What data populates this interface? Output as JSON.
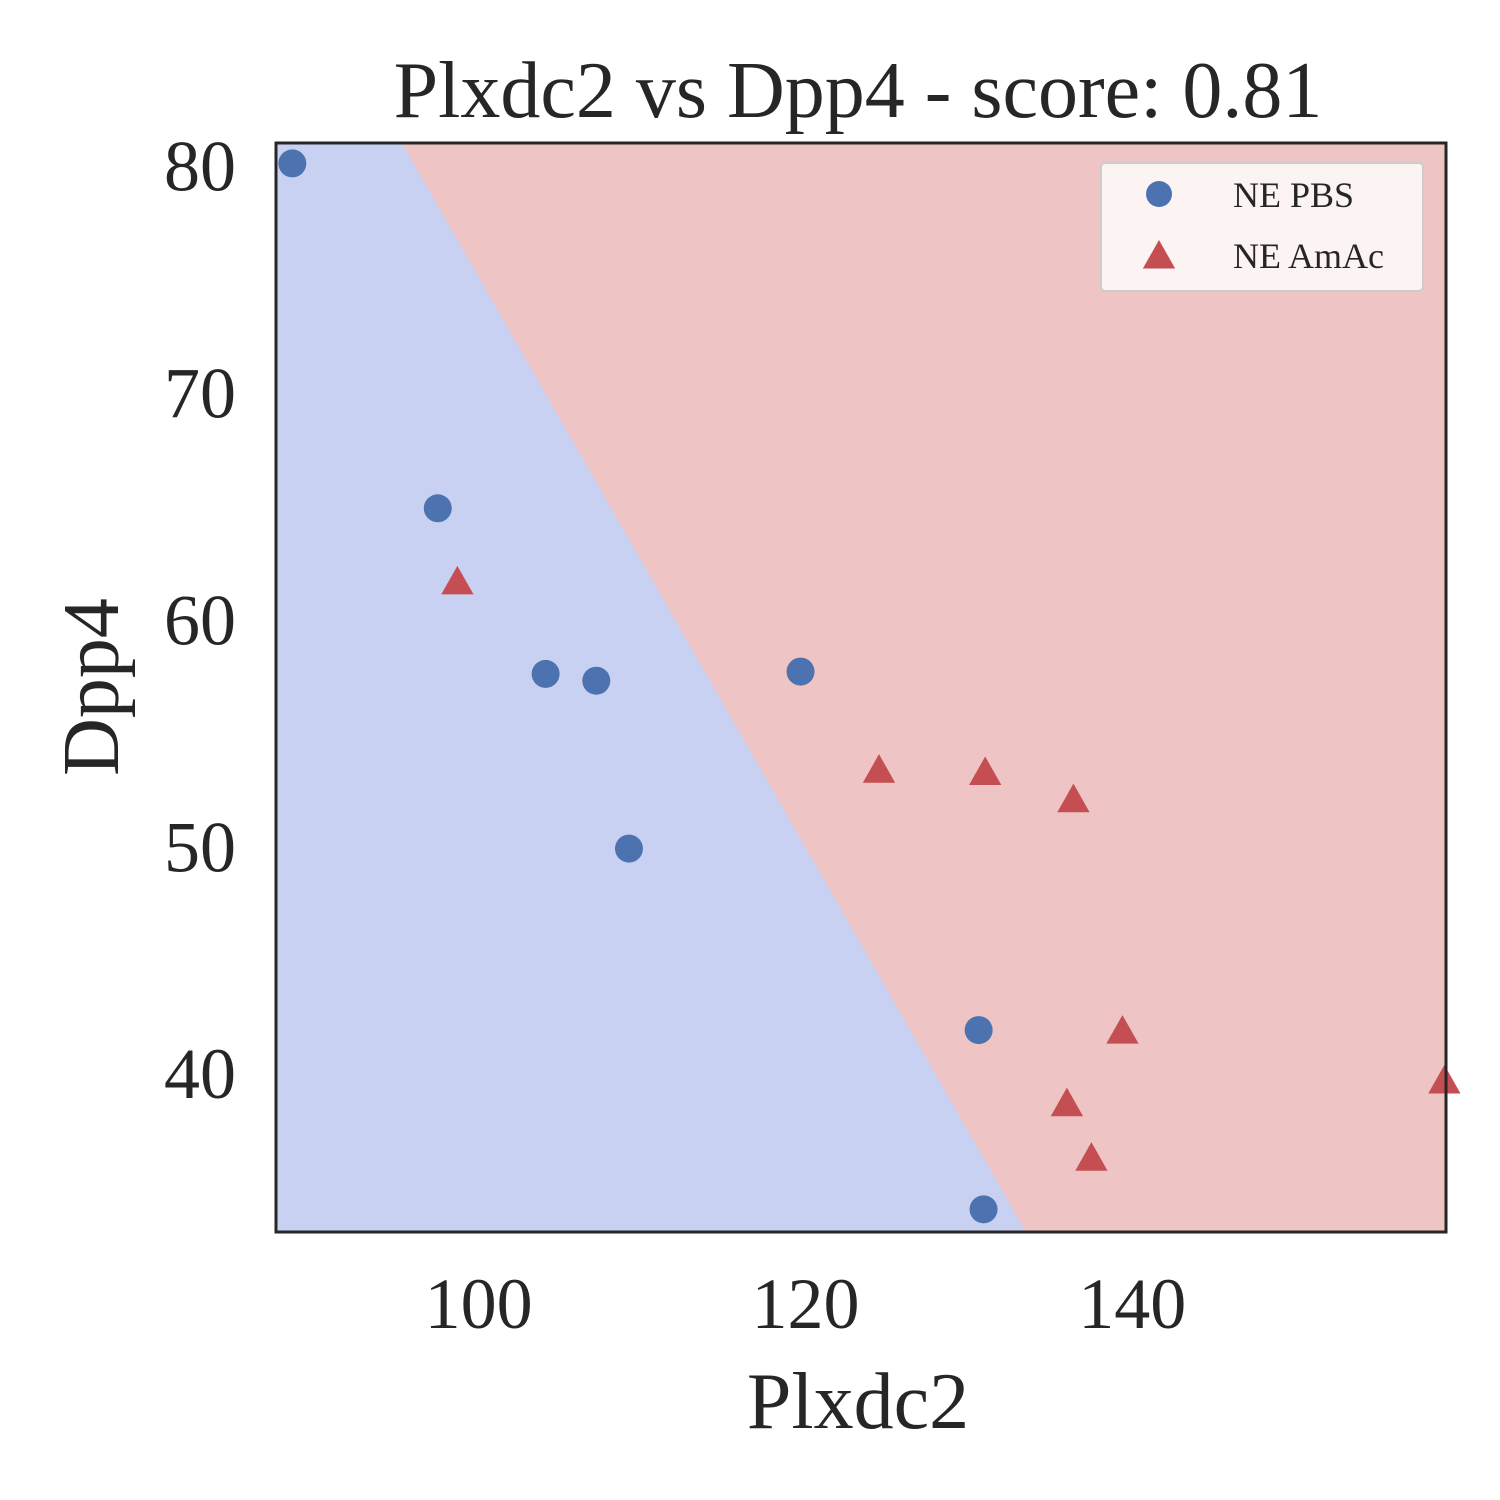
{
  "chart_data": {
    "type": "scatter",
    "title": "Plxdc2 vs Dpp4 - score: 0.81",
    "xlabel": "Plxdc2",
    "ylabel": "Dpp4",
    "xlim": [
      87.6,
      159.2
    ],
    "ylim": [
      33.0,
      81.0
    ],
    "xticks": [
      100,
      120,
      140
    ],
    "yticks": [
      40,
      50,
      60,
      70,
      80
    ],
    "grid": false,
    "legend_position": "top-right",
    "decision_boundary": {
      "points": [
        [
          95.3,
          81.0
        ],
        [
          133.5,
          33.0
        ]
      ],
      "left_region_color": "#c9d1f2",
      "right_region_color": "#efc4c4"
    },
    "series": [
      {
        "name": "NE PBS",
        "marker": "circle",
        "color": "#4c72b0",
        "points": [
          [
            88.6,
            80.1
          ],
          [
            97.5,
            64.9
          ],
          [
            104.1,
            57.6
          ],
          [
            107.2,
            57.3
          ],
          [
            109.2,
            49.9
          ],
          [
            119.7,
            57.7
          ],
          [
            130.6,
            41.9
          ],
          [
            130.9,
            34.0
          ]
        ]
      },
      {
        "name": "NE AmAc",
        "marker": "triangle",
        "color": "#c44e52",
        "points": [
          [
            98.7,
            61.7
          ],
          [
            124.5,
            53.4
          ],
          [
            131.0,
            53.3
          ],
          [
            136.4,
            52.1
          ],
          [
            139.4,
            41.9
          ],
          [
            136.0,
            38.7
          ],
          [
            137.5,
            36.3
          ],
          [
            159.1,
            39.7
          ]
        ]
      }
    ]
  }
}
